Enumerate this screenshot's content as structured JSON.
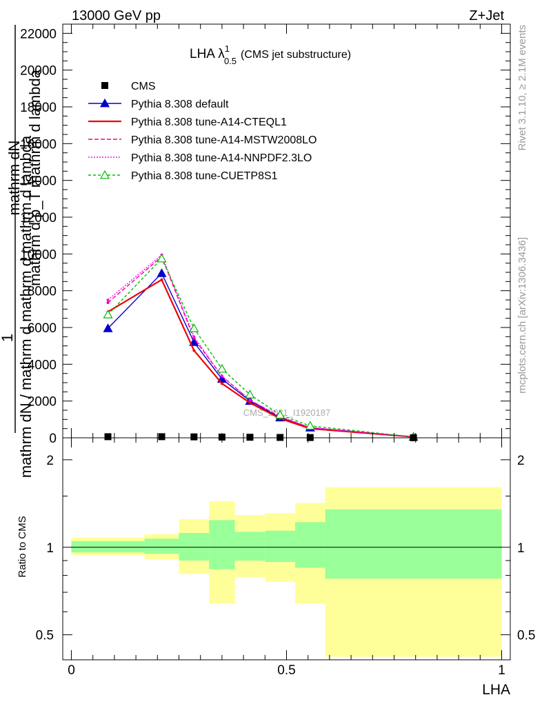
{
  "header": {
    "left": "13000 GeV pp",
    "right": "Z+Jet"
  },
  "side_text": {
    "rivet": "Rivet 3.1.10, ≥ 2.1M events",
    "mcplots": "mcplots.cern.ch [arXiv:1306.3436]"
  },
  "chart_data": [
    {
      "type": "line",
      "panel": "main",
      "title": "LHA λ",
      "title_sup": "1",
      "title_sub": "0.5",
      "title_suffix": "(CMS jet substructure)",
      "watermark": "CMS_2021_I1920187",
      "ylabel_overlay": [
        "mathrm dN",
        "mathrm d p_T mathrm d lambda",
        "1",
        "mathrm dN / mathrm d mathrm d mathrm d lambda"
      ],
      "ylim": [
        0,
        22500
      ],
      "yticks": [
        0,
        2000,
        4000,
        6000,
        8000,
        10000,
        12000,
        14000,
        16000,
        18000,
        20000,
        22000
      ],
      "ytick_labels": [
        "0",
        "2000",
        "4000",
        "6000",
        "8000",
        "10000",
        "12000",
        "14000",
        "16000",
        "18000",
        "20000",
        "22000"
      ],
      "xlim": [
        -0.02,
        1.02
      ],
      "x": [
        0.085,
        0.21,
        0.285,
        0.35,
        0.415,
        0.485,
        0.555,
        0.795
      ],
      "cms": {
        "name": "CMS",
        "y": [
          60,
          60,
          50,
          40,
          30,
          20,
          15,
          5
        ]
      },
      "series": [
        {
          "name": "Pythia 8.308 default",
          "color": "#0000cc",
          "dash": "",
          "marker": "triangle-filled",
          "y": [
            5950,
            8950,
            5200,
            3200,
            2000,
            1100,
            550,
            50
          ]
        },
        {
          "name": "Pythia 8.308 tune-A14-CTEQL1",
          "color": "#ee0000",
          "dash": "",
          "marker": "none",
          "y": [
            6850,
            8600,
            4750,
            2950,
            1900,
            1050,
            500,
            50
          ]
        },
        {
          "name": "Pythia 8.308 tune-A14-MSTW2008LO",
          "color": "#ee0088",
          "dash": "6,3",
          "marker": "none",
          "y": [
            7350,
            9850,
            5400,
            3350,
            2050,
            1150,
            550,
            50
          ]
        },
        {
          "name": "Pythia 8.308 tune-A14-NNPDF2.3LO",
          "color": "#ff00ff",
          "dash": "2,2",
          "marker": "none",
          "y": [
            7500,
            9950,
            5500,
            3350,
            2050,
            1150,
            550,
            50
          ]
        },
        {
          "name": "Pythia 8.308 tune-CUETP8S1",
          "color": "#00bb00",
          "dash": "4,3",
          "marker": "triangle-open",
          "y": [
            6700,
            9750,
            5950,
            3750,
            2350,
            1250,
            650,
            50
          ]
        }
      ]
    },
    {
      "type": "area",
      "panel": "ratio",
      "ylabel": "Ratio to CMS",
      "ylim": [
        0.41,
        2.38
      ],
      "yticks": [
        0.5,
        1,
        2
      ],
      "ytick_labels": [
        "0.5",
        "1",
        "2"
      ],
      "xlim": [
        -0.02,
        1.02
      ],
      "xticks": [
        0,
        0.5,
        1
      ],
      "xtick_labels": [
        "0",
        "0.5",
        "1"
      ],
      "xlabel": "LHA",
      "reference": 1,
      "bins": [
        {
          "x0": 0.0,
          "x1": 0.17,
          "outer": [
            0.94,
            1.08
          ],
          "inner": [
            0.96,
            1.05
          ]
        },
        {
          "x0": 0.17,
          "x1": 0.25,
          "outer": [
            0.91,
            1.11
          ],
          "inner": [
            0.95,
            1.07
          ]
        },
        {
          "x0": 0.25,
          "x1": 0.32,
          "outer": [
            0.81,
            1.25
          ],
          "inner": [
            0.9,
            1.12
          ]
        },
        {
          "x0": 0.32,
          "x1": 0.38,
          "outer": [
            0.64,
            1.44
          ],
          "inner": [
            0.84,
            1.24
          ]
        },
        {
          "x0": 0.38,
          "x1": 0.45,
          "outer": [
            0.79,
            1.29
          ],
          "inner": [
            0.9,
            1.13
          ]
        },
        {
          "x0": 0.45,
          "x1": 0.52,
          "outer": [
            0.76,
            1.31
          ],
          "inner": [
            0.89,
            1.14
          ]
        },
        {
          "x0": 0.52,
          "x1": 0.59,
          "outer": [
            0.64,
            1.42
          ],
          "inner": [
            0.85,
            1.22
          ]
        },
        {
          "x0": 0.59,
          "x1": 1.0,
          "outer": [
            0.42,
            1.61
          ],
          "inner": [
            0.78,
            1.35
          ]
        }
      ],
      "band_colors": {
        "outer": "#ffff99",
        "inner": "#99ff99"
      }
    }
  ]
}
